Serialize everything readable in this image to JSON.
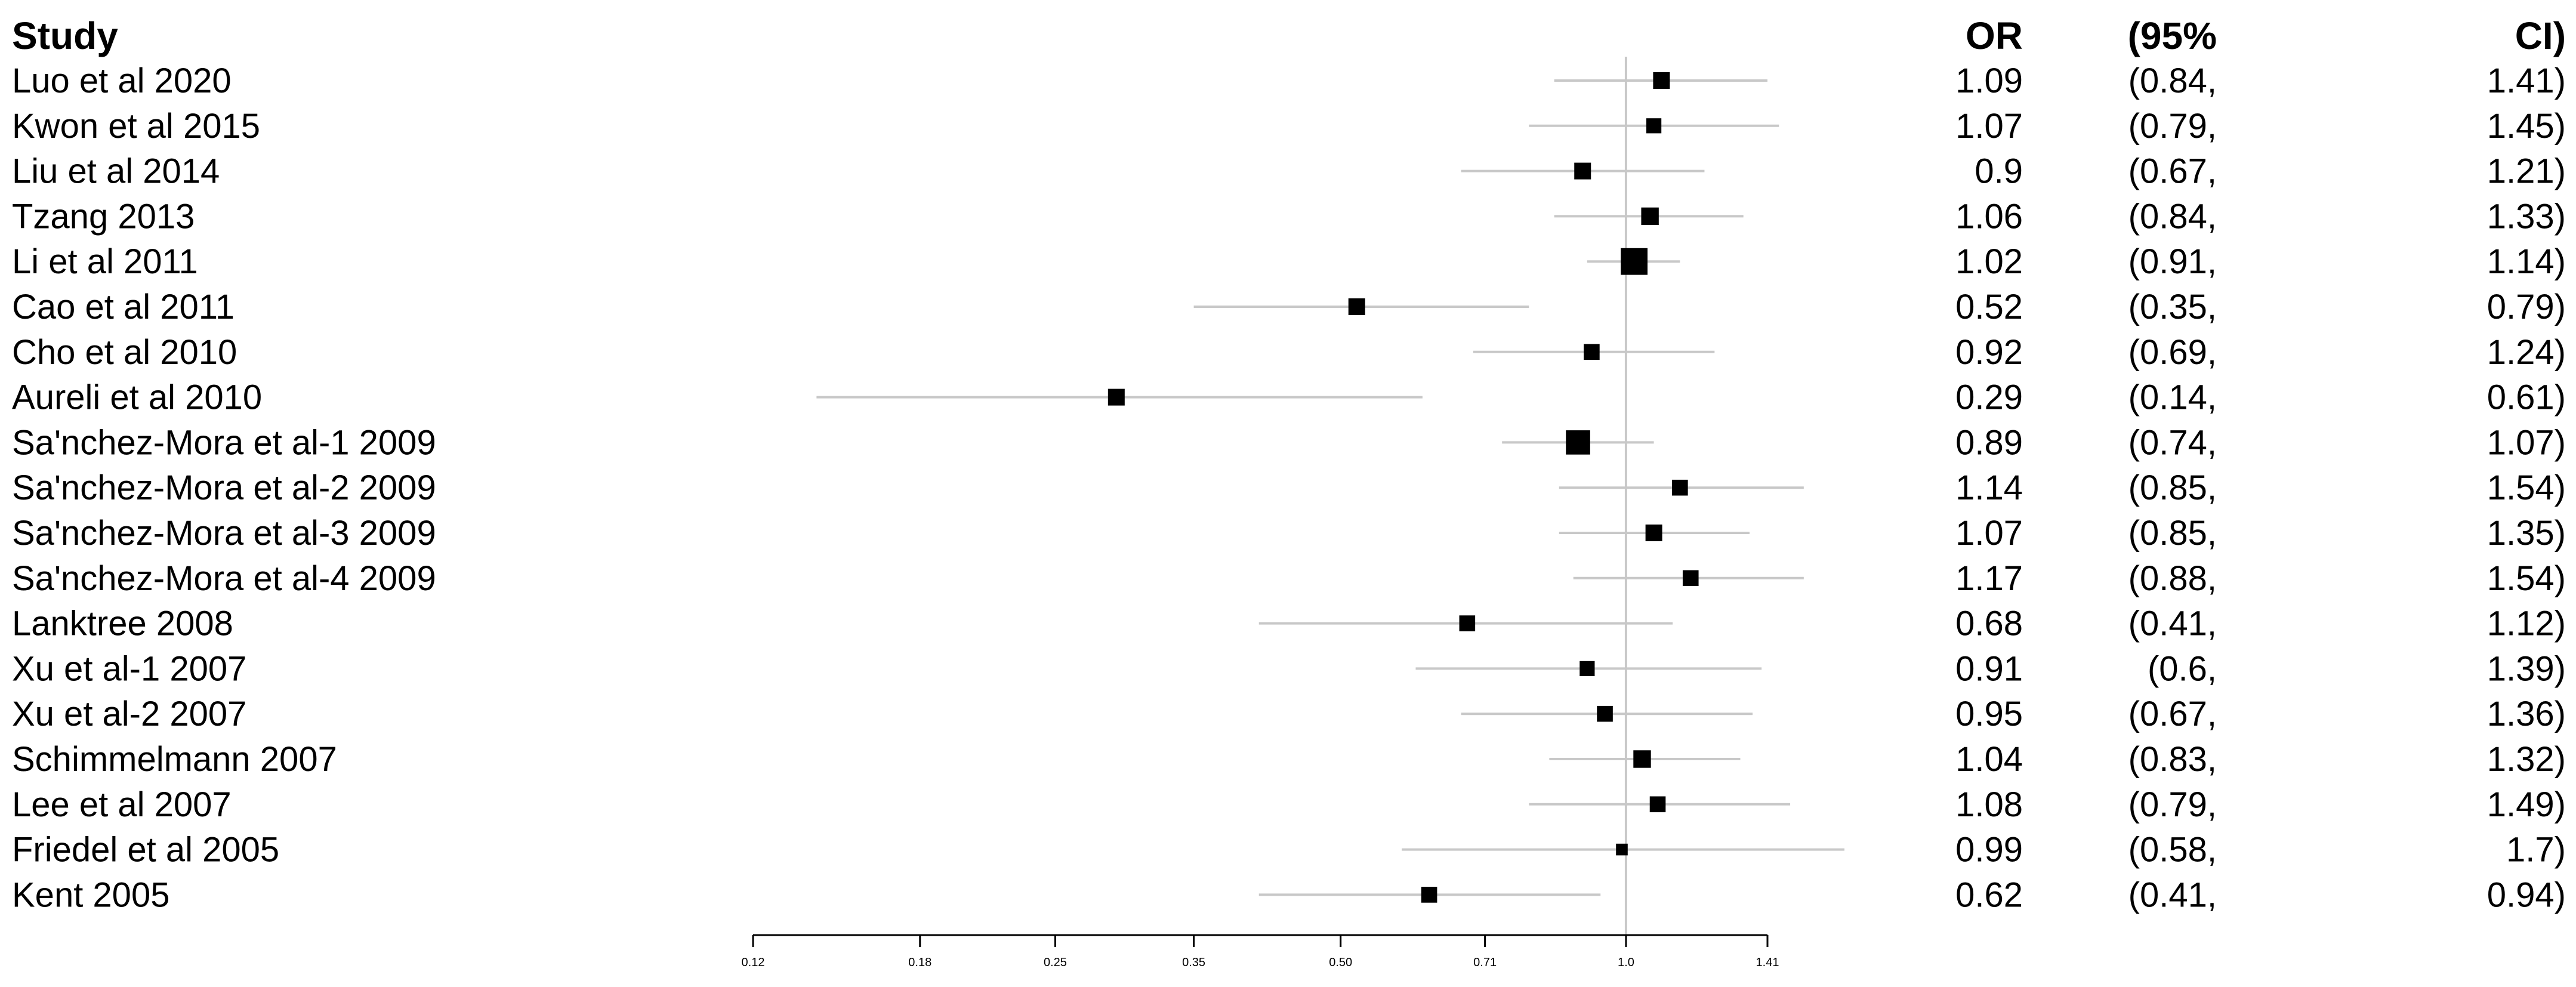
{
  "chart_data": {
    "type": "forest",
    "x_scale": "log",
    "reference_line": 1.0,
    "headers": {
      "study": "Study",
      "or": "OR",
      "ci_left": "(95%",
      "ci_right": "CI)"
    },
    "x_ticks": [
      {
        "value": 0.12,
        "label": "0.12"
      },
      {
        "value": 0.18,
        "label": "0.18"
      },
      {
        "value": 0.25,
        "label": "0.25"
      },
      {
        "value": 0.35,
        "label": "0.35"
      },
      {
        "value": 0.5,
        "label": "0.50"
      },
      {
        "value": 0.71,
        "label": "0.71"
      },
      {
        "value": 1.0,
        "label": "1.0"
      },
      {
        "value": 1.41,
        "label": "1.41"
      }
    ],
    "studies": [
      {
        "name": "Luo et al 2020",
        "or": 1.09,
        "lo": 0.84,
        "hi": 1.41,
        "or_label": "1.09",
        "lo_label": "(0.84,",
        "hi_label": "1.41)",
        "weight": 1.0
      },
      {
        "name": "Kwon et al 2015",
        "or": 1.07,
        "lo": 0.79,
        "hi": 1.45,
        "or_label": "1.07",
        "lo_label": "(0.79,",
        "hi_label": "1.45)",
        "weight": 0.9
      },
      {
        "name": "Liu et al 2014",
        "or": 0.9,
        "lo": 0.67,
        "hi": 1.21,
        "or_label": "0.9",
        "lo_label": "(0.67,",
        "hi_label": "1.21)",
        "weight": 1.0
      },
      {
        "name": "Tzang 2013",
        "or": 1.06,
        "lo": 0.84,
        "hi": 1.33,
        "or_label": "1.06",
        "lo_label": "(0.84,",
        "hi_label": "1.33)",
        "weight": 1.05
      },
      {
        "name": "Li et al 2011",
        "or": 1.02,
        "lo": 0.91,
        "hi": 1.14,
        "or_label": "1.02",
        "lo_label": "(0.91,",
        "hi_label": "1.14)",
        "weight": 1.6
      },
      {
        "name": "Cao et al 2011",
        "or": 0.52,
        "lo": 0.35,
        "hi": 0.79,
        "or_label": "0.52",
        "lo_label": "(0.35,",
        "hi_label": "0.79)",
        "weight": 1.0
      },
      {
        "name": "Cho et al 2010",
        "or": 0.92,
        "lo": 0.69,
        "hi": 1.24,
        "or_label": "0.92",
        "lo_label": "(0.69,",
        "hi_label": "1.24)",
        "weight": 0.95
      },
      {
        "name": "Aureli et al 2010",
        "or": 0.29,
        "lo": 0.14,
        "hi": 0.61,
        "or_label": "0.29",
        "lo_label": "(0.14,",
        "hi_label": "0.61)",
        "weight": 1.0
      },
      {
        "name": "Sa'nchez-Mora et al-1 2009",
        "or": 0.89,
        "lo": 0.74,
        "hi": 1.07,
        "or_label": "0.89",
        "lo_label": "(0.74,",
        "hi_label": "1.07)",
        "weight": 1.45
      },
      {
        "name": "Sa'nchez-Mora et al-2 2009",
        "or": 1.14,
        "lo": 0.85,
        "hi": 1.54,
        "or_label": "1.14",
        "lo_label": "(0.85,",
        "hi_label": "1.54)",
        "weight": 0.95
      },
      {
        "name": "Sa'nchez-Mora et al-3 2009",
        "or": 1.07,
        "lo": 0.85,
        "hi": 1.35,
        "or_label": "1.07",
        "lo_label": "(0.85,",
        "hi_label": "1.35)",
        "weight": 1.0
      },
      {
        "name": "Sa'nchez-Mora et al-4 2009",
        "or": 1.17,
        "lo": 0.88,
        "hi": 1.54,
        "or_label": "1.17",
        "lo_label": "(0.88,",
        "hi_label": "1.54)",
        "weight": 0.95
      },
      {
        "name": "Lanktree 2008",
        "or": 0.68,
        "lo": 0.41,
        "hi": 1.12,
        "or_label": "0.68",
        "lo_label": "(0.41,",
        "hi_label": "1.12)",
        "weight": 0.95
      },
      {
        "name": "Xu et al-1 2007",
        "or": 0.91,
        "lo": 0.6,
        "hi": 1.39,
        "or_label": "0.91",
        "lo_label": "(0.6,",
        "hi_label": "1.39)",
        "weight": 0.9
      },
      {
        "name": "Xu et al-2 2007",
        "or": 0.95,
        "lo": 0.67,
        "hi": 1.36,
        "or_label": "0.95",
        "lo_label": "(0.67,",
        "hi_label": "1.36)",
        "weight": 0.95
      },
      {
        "name": "Schimmelmann 2007",
        "or": 1.04,
        "lo": 0.83,
        "hi": 1.32,
        "or_label": "1.04",
        "lo_label": "(0.83,",
        "hi_label": "1.32)",
        "weight": 1.05
      },
      {
        "name": "Lee et al 2007",
        "or": 1.08,
        "lo": 0.79,
        "hi": 1.49,
        "or_label": "1.08",
        "lo_label": "(0.79,",
        "hi_label": "1.49)",
        "weight": 0.95
      },
      {
        "name": "Friedel et al 2005",
        "or": 0.99,
        "lo": 0.58,
        "hi": 1.7,
        "or_label": "0.99",
        "lo_label": "(0.58,",
        "hi_label": "1.7)",
        "weight": 0.7
      },
      {
        "name": "Kent 2005",
        "or": 0.62,
        "lo": 0.41,
        "hi": 0.94,
        "or_label": "0.62",
        "lo_label": "(0.41,",
        "hi_label": "0.94)",
        "weight": 0.95
      }
    ]
  }
}
